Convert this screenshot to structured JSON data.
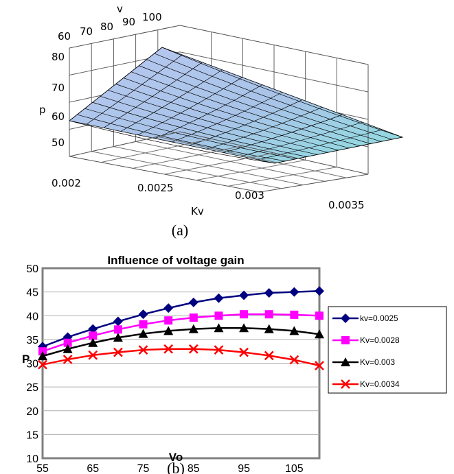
{
  "chart_data": [
    {
      "type": "surface",
      "caption": "(a)",
      "xlabel": "Kv",
      "ylabel": "v",
      "zlabel": "p",
      "x_ticks": [
        "0.002",
        "0.0025",
        "0.003",
        "0.0035"
      ],
      "y_ticks": [
        "60",
        "70",
        "80",
        "90",
        "100"
      ],
      "z_ticks": [
        "50",
        "60",
        "70",
        "80"
      ],
      "xlim": [
        0.002,
        0.0035
      ],
      "ylim": [
        55,
        100
      ],
      "zlim": [
        45,
        85
      ],
      "corners": [
        {
          "Kv": 0.002,
          "v": 55,
          "p": 56
        },
        {
          "Kv": 0.002,
          "v": 100,
          "p": 84
        },
        {
          "Kv": 0.0035,
          "v": 55,
          "p": 45
        },
        {
          "Kv": 0.0035,
          "v": 100,
          "p": 50
        }
      ]
    },
    {
      "type": "line",
      "caption": "(b)",
      "title": "Influence of voltage gain",
      "xlabel": "Vo",
      "ylabel": "P",
      "x": [
        55,
        60,
        65,
        70,
        75,
        80,
        85,
        90,
        95,
        100,
        105,
        110
      ],
      "x_ticks": [
        "55",
        "65",
        "75",
        "85",
        "95",
        "105"
      ],
      "y_ticks": [
        "10",
        "15",
        "20",
        "25",
        "30",
        "35",
        "40",
        "45",
        "50"
      ],
      "ylim": [
        10,
        50
      ],
      "grid": "horizontal",
      "legend": "right",
      "series": [
        {
          "name": "kv=0.0025",
          "marker": "diamond",
          "color": "#000080",
          "values": [
            33.5,
            35.5,
            37.2,
            38.8,
            40.3,
            41.6,
            42.8,
            43.7,
            44.3,
            44.8,
            45.0,
            45.2
          ]
        },
        {
          "name": "Kv=0.0028",
          "marker": "square",
          "color": "#ff00ff",
          "values": [
            32.5,
            34.3,
            35.8,
            37.1,
            38.2,
            39.0,
            39.6,
            40.0,
            40.3,
            40.3,
            40.2,
            40.0
          ]
        },
        {
          "name": "Kv=0.003",
          "marker": "triangle",
          "color": "#000000",
          "values": [
            31.5,
            33.0,
            34.3,
            35.4,
            36.2,
            36.8,
            37.2,
            37.4,
            37.4,
            37.2,
            36.8,
            36.1
          ]
        },
        {
          "name": "Kv=0.0034",
          "marker": "x",
          "color": "#ff0000",
          "values": [
            29.7,
            30.8,
            31.7,
            32.3,
            32.8,
            33.0,
            33.0,
            32.8,
            32.3,
            31.6,
            30.7,
            29.5
          ]
        }
      ]
    }
  ]
}
